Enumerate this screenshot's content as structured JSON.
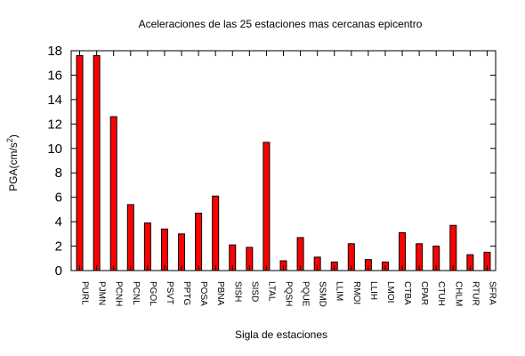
{
  "chart_data": {
    "type": "bar",
    "title": "Aceleraciones de las 25 estaciones mas cercanas epicentro",
    "xlabel": "Sigla de estaciones",
    "ylabel_base": "PGA(cm/s",
    "ylabel_exp": "2",
    "ylabel_close": ")",
    "ylim": [
      0,
      18
    ],
    "yticks": [
      0,
      2,
      4,
      6,
      8,
      10,
      12,
      14,
      16,
      18
    ],
    "grid": false,
    "legend": "none",
    "bar_color": "#ff0000",
    "categories": [
      "PURL",
      "PJMN",
      "PCNH",
      "PCNL",
      "PGOL",
      "PSVT",
      "PPTG",
      "POSA",
      "PBNA",
      "SISH",
      "SISD",
      "LTAL",
      "PQSH",
      "PQUE",
      "SSMD",
      "LLIM",
      "RMOI",
      "LLIH",
      "LMOI",
      "CTBA",
      "CPAR",
      "CTUH",
      "CHLM",
      "RTUR",
      "SFRA"
    ],
    "values": [
      17.6,
      17.6,
      12.6,
      5.4,
      3.9,
      3.4,
      3.0,
      4.7,
      6.1,
      2.1,
      1.9,
      10.5,
      0.8,
      2.7,
      1.1,
      0.7,
      2.2,
      0.9,
      0.7,
      3.1,
      2.2,
      2.0,
      3.7,
      1.3,
      1.5
    ]
  }
}
